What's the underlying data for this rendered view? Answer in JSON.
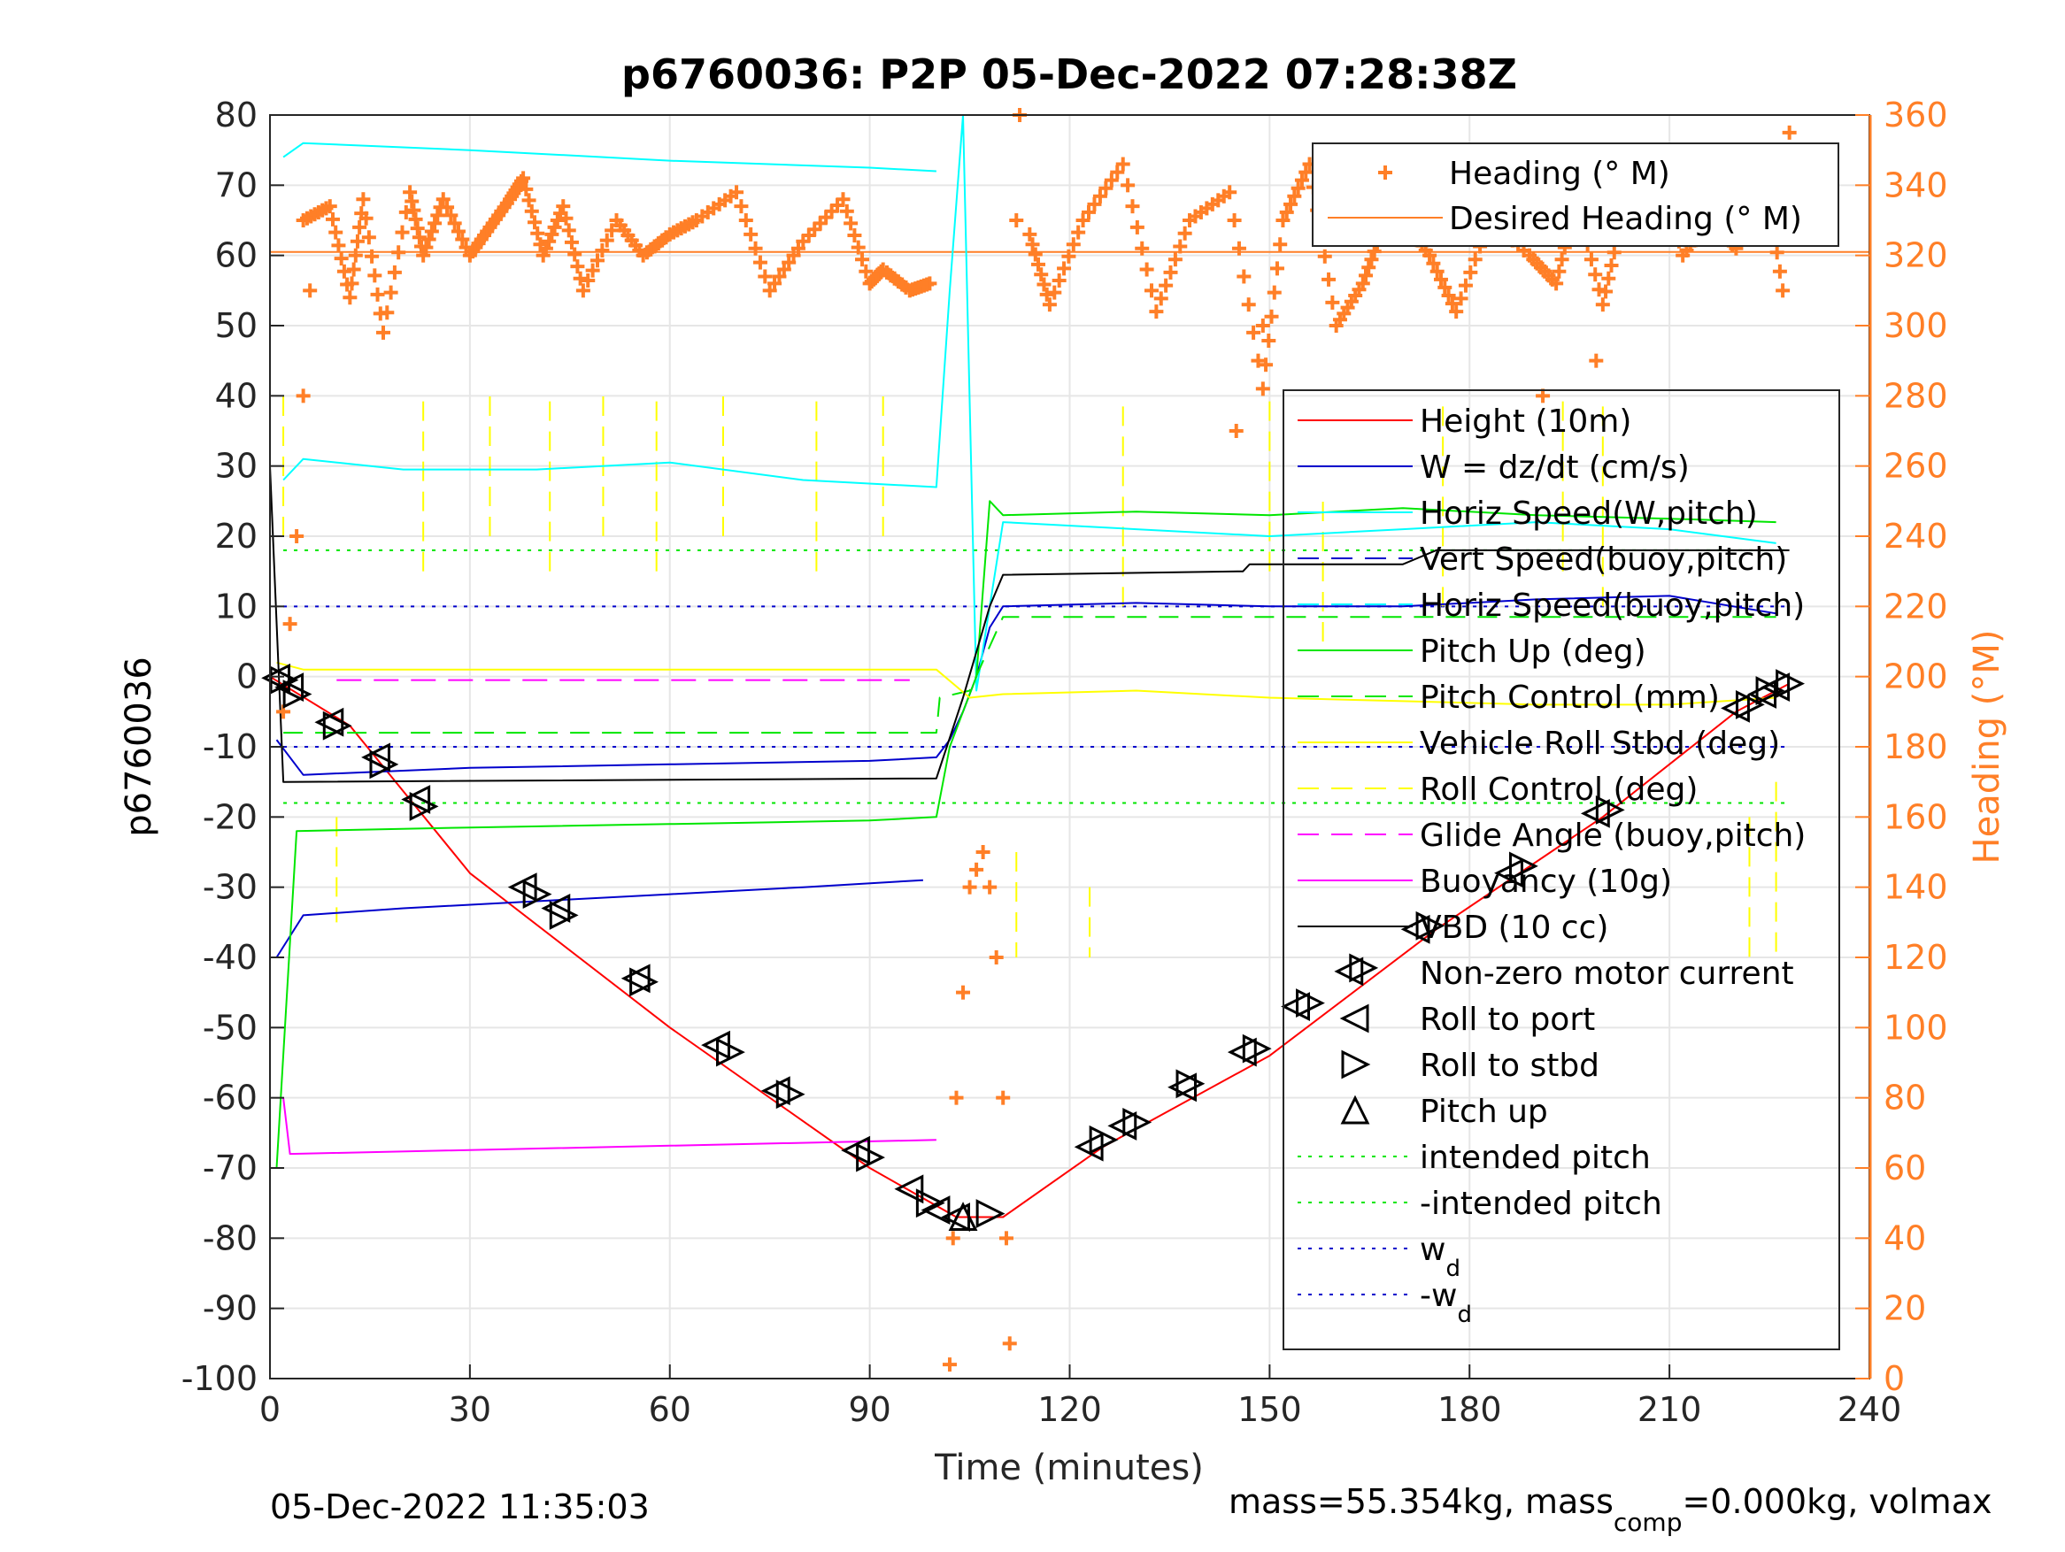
{
  "title": "p6760036: P2P 05-Dec-2022 07:28:38Z",
  "footer_left": "05-Dec-2022 11:35:03",
  "footer_right": {
    "prefix": "mass=55.354kg, mass",
    "sub": "comp",
    "suffix": "=0.000kg, volmax"
  },
  "colors": {
    "heading": "#ff7f27",
    "red": "#ff0000",
    "blue": "#0000cc",
    "green": "#00e600",
    "cyan": "#00ffff",
    "yellow": "#ffff00",
    "magenta": "#ff00ff",
    "black": "#000000",
    "grid": "#e6e6e6"
  },
  "chart_data": {
    "type": "line",
    "xlabel": "Time (minutes)",
    "ylabel": "p6760036",
    "y2label": "Heading (°M)",
    "xlim": [
      0,
      240
    ],
    "ylim": [
      -100,
      80
    ],
    "y2lim": [
      0,
      360
    ],
    "xticks": [
      0,
      30,
      60,
      90,
      120,
      150,
      180,
      210,
      240
    ],
    "yticks": [
      80,
      70,
      60,
      50,
      40,
      30,
      20,
      10,
      0,
      -10,
      -20,
      -30,
      -40,
      -50,
      -60,
      -70,
      -80,
      -90,
      -100
    ],
    "y2ticks": [
      360,
      340,
      320,
      300,
      280,
      260,
      240,
      220,
      200,
      180,
      160,
      140,
      120,
      100,
      80,
      60,
      40,
      20,
      0
    ],
    "grid": true,
    "legend_heading": [
      {
        "label": "Heading (° M)",
        "style": "plus",
        "color": "#ff7f27"
      },
      {
        "label": "Desired Heading (° M)",
        "style": "solid",
        "color": "#ff7f27"
      }
    ],
    "legend_main": [
      {
        "label": "Height (10m)",
        "style": "solid",
        "color": "#ff0000"
      },
      {
        "label": "W = dz/dt (cm/s)",
        "style": "solid",
        "color": "#0000cc"
      },
      {
        "label": "Horiz Speed(W,pitch)",
        "style": "solid",
        "color": "#00ffff"
      },
      {
        "label": "Vert Speed(buoy,pitch)",
        "style": "dashed",
        "color": "#0000cc"
      },
      {
        "label": "Horiz Speed(buoy,pitch)",
        "style": "dashed",
        "color": "#00ffff"
      },
      {
        "label": "Pitch Up (deg)",
        "style": "solid",
        "color": "#00e600"
      },
      {
        "label": "Pitch Control (mm)",
        "style": "dashed",
        "color": "#00e600"
      },
      {
        "label": "Vehicle Roll Stbd (deg)",
        "style": "solid",
        "color": "#ffff00"
      },
      {
        "label": "Roll Control (deg)",
        "style": "dashed",
        "color": "#ffff00"
      },
      {
        "label": "Glide Angle (buoy,pitch)",
        "style": "dashed",
        "color": "#ff00ff"
      },
      {
        "label": "Buoyancy (10g)",
        "style": "solid",
        "color": "#ff00ff"
      },
      {
        "label": "VBD (10 cc)",
        "style": "solid",
        "color": "#000000"
      },
      {
        "label": "Non-zero motor current",
        "style": "none",
        "color": "#000000"
      },
      {
        "label": "Roll to port",
        "style": "tri-left",
        "color": "#000000"
      },
      {
        "label": "Roll to stbd",
        "style": "tri-right",
        "color": "#000000"
      },
      {
        "label": "Pitch up",
        "style": "tri-up",
        "color": "#000000"
      },
      {
        "label": "intended pitch",
        "style": "dotted",
        "color": "#00e600"
      },
      {
        "label": "-intended pitch",
        "style": "dotted",
        "color": "#00e600"
      },
      {
        "label": "w",
        "sub": "d",
        "style": "dotted",
        "color": "#0000cc"
      },
      {
        "label": "-w",
        "sub": "d",
        "style": "dotted",
        "color": "#0000cc"
      }
    ],
    "series": [
      {
        "key": "height",
        "color": "#ff0000",
        "dash": "",
        "x": [
          0,
          12,
          30,
          60,
          90,
          103,
          110,
          125,
          150,
          175,
          200,
          220,
          228
        ],
        "y": [
          0,
          -7,
          -28,
          -50,
          -70,
          -77,
          -77,
          -67,
          -54,
          -36,
          -20,
          -5,
          -1
        ]
      },
      {
        "key": "w",
        "color": "#0000cc",
        "dash": "",
        "x": [
          1,
          5,
          30,
          60,
          90,
          100,
          102,
          104,
          106,
          108,
          110,
          130,
          150,
          170,
          190,
          210,
          226
        ],
        "y": [
          -9,
          -14,
          -13,
          -12.5,
          -12,
          -11.5,
          -9,
          -5,
          0,
          7,
          10,
          10.5,
          10,
          10,
          11,
          11.5,
          9
        ]
      },
      {
        "key": "horiz_w",
        "color": "#00ffff",
        "dash": "",
        "x": [
          2,
          5,
          20,
          40,
          60,
          80,
          100,
          102,
          104,
          106,
          108,
          110,
          130,
          150,
          170,
          190,
          210,
          226
        ],
        "y": [
          28,
          31,
          29.5,
          29.5,
          30.5,
          28,
          27,
          55,
          80,
          -2,
          10,
          22,
          21,
          20,
          21,
          22,
          21,
          19
        ]
      },
      {
        "key": "vert_buoy",
        "color": "#0000cc",
        "dash": "",
        "x": [
          1,
          5,
          20,
          40,
          60,
          80,
          98
        ],
        "y": [
          -40,
          -34,
          -33,
          -32,
          -31,
          -30,
          -29
        ]
      },
      {
        "key": "horiz_buoy",
        "color": "#00ffff",
        "dash": "",
        "x": [
          2,
          5,
          30,
          60,
          90,
          100
        ],
        "y": [
          74,
          76,
          75,
          73.5,
          72.5,
          72
        ]
      },
      {
        "key": "pitch",
        "color": "#00e600",
        "dash": "",
        "x": [
          1,
          4,
          30,
          60,
          90,
          100,
          102,
          104,
          106,
          108,
          110,
          130,
          150,
          170,
          190,
          210,
          226
        ],
        "y": [
          -70,
          -22,
          -21.5,
          -21,
          -20.5,
          -20,
          -10,
          -5,
          0,
          25,
          23,
          23.5,
          23,
          24,
          23,
          22.5,
          22
        ]
      },
      {
        "key": "pitch_ctrl",
        "color": "#00e600",
        "dash": "22,14",
        "x": [
          2,
          100,
          100.5,
          105,
          110,
          150,
          226
        ],
        "y": [
          -8,
          -8,
          -3,
          -2,
          8.5,
          8.5,
          8.5
        ]
      },
      {
        "key": "roll",
        "color": "#ffff00",
        "dash": "",
        "x": [
          1,
          5,
          30,
          60,
          90,
          100,
          105,
          110,
          130,
          150,
          170,
          190,
          210,
          226
        ],
        "y": [
          2,
          1,
          1,
          1,
          1,
          1,
          -3,
          -2.5,
          -2,
          -3,
          -3.5,
          -4,
          -4,
          -3
        ]
      },
      {
        "key": "glide",
        "color": "#ff00ff",
        "dash": "28,14",
        "x": [
          10,
          96
        ],
        "y": [
          -0.5,
          -0.5
        ]
      },
      {
        "key": "buoy",
        "color": "#ff00ff",
        "dash": "",
        "x": [
          2,
          3,
          100
        ],
        "y": [
          -60,
          -68,
          -66
        ]
      },
      {
        "key": "vbd",
        "color": "#000000",
        "dash": "",
        "x": [
          0,
          2,
          100,
          104,
          108,
          110,
          146,
          147,
          170,
          175,
          228
        ],
        "y": [
          30,
          -15,
          -14.5,
          -3,
          10,
          14.5,
          15,
          16,
          16,
          18,
          18
        ]
      }
    ],
    "ref_lines": [
      {
        "key": "intended",
        "value": 18,
        "color": "#00e600",
        "dash": "4,8",
        "from": 2,
        "to": 228
      },
      {
        "key": "-intended",
        "value": -18,
        "color": "#00e600",
        "dash": "4,8",
        "from": 2,
        "to": 228
      },
      {
        "key": "wd",
        "value": 10,
        "color": "#0000cc",
        "dash": "4,8",
        "from": 2,
        "to": 228
      },
      {
        "key": "-wd",
        "value": -10,
        "color": "#0000cc",
        "dash": "4,8",
        "from": 2,
        "to": 228
      }
    ],
    "desired_heading": 321,
    "roll_port": [
      [
        1,
        -0.2
      ],
      [
        3,
        -1.5
      ],
      [
        9,
        -6.5
      ],
      [
        16,
        -11.5
      ],
      [
        22,
        -17.5
      ],
      [
        38,
        -30
      ],
      [
        43,
        -33
      ],
      [
        55,
        -43
      ],
      [
        67,
        -52.5
      ],
      [
        76,
        -59
      ],
      [
        88,
        -67.5
      ],
      [
        96,
        -73
      ],
      [
        100,
        -76
      ],
      [
        103,
        -77
      ],
      [
        123,
        -67
      ],
      [
        128,
        -64
      ],
      [
        137,
        -58.5
      ],
      [
        146,
        -53.5
      ],
      [
        154,
        -47
      ],
      [
        162,
        -42
      ],
      [
        172,
        -36
      ],
      [
        186,
        -28
      ],
      [
        199,
        -19.5
      ],
      [
        220,
        -4.5
      ],
      [
        224,
        -2.5
      ],
      [
        226,
        -1.5
      ]
    ],
    "roll_stbd": [
      [
        2,
        -0.5
      ],
      [
        4,
        -2.5
      ],
      [
        10,
        -7
      ],
      [
        17,
        -12.5
      ],
      [
        23,
        -18.5
      ],
      [
        40,
        -31
      ],
      [
        44,
        -34
      ],
      [
        56,
        -43.5
      ],
      [
        69,
        -53.5
      ],
      [
        78,
        -59.5
      ],
      [
        90,
        -68.5
      ],
      [
        99,
        -75
      ],
      [
        108,
        -76.5
      ],
      [
        125,
        -66
      ],
      [
        130,
        -63.5
      ],
      [
        138,
        -58
      ],
      [
        148,
        -53
      ],
      [
        156,
        -46.5
      ],
      [
        164,
        -41.5
      ],
      [
        174,
        -35.5
      ],
      [
        188,
        -27
      ],
      [
        201,
        -19
      ],
      [
        222,
        -4
      ],
      [
        225,
        -2
      ],
      [
        228,
        -1
      ]
    ],
    "pitch_up_marks": [
      [
        104,
        -77
      ]
    ],
    "roll_spikes": [
      [
        2,
        20,
        40
      ],
      [
        10,
        -20,
        -35
      ],
      [
        23,
        15,
        40
      ],
      [
        33,
        20,
        40
      ],
      [
        42,
        15,
        40
      ],
      [
        50,
        20,
        40
      ],
      [
        58,
        15,
        40
      ],
      [
        68,
        20,
        40
      ],
      [
        82,
        15,
        40
      ],
      [
        92,
        20,
        40
      ],
      [
        112,
        -25,
        -40
      ],
      [
        123,
        -30,
        -40
      ],
      [
        128,
        10,
        40
      ],
      [
        150,
        15,
        40
      ],
      [
        158,
        5,
        25
      ],
      [
        176,
        10,
        40
      ],
      [
        194,
        15,
        40
      ],
      [
        200,
        10,
        40
      ],
      [
        222,
        -20,
        -40
      ],
      [
        226,
        -15,
        -40
      ]
    ],
    "heading_segments": [
      {
        "x": [
          5,
          9,
          12,
          14,
          17,
          21,
          23,
          26,
          30,
          33,
          36,
          38,
          41,
          44,
          47,
          52,
          56,
          60,
          64,
          70,
          75,
          80,
          86,
          90,
          92,
          96,
          99
        ],
        "y": [
          330,
          334,
          308,
          336,
          298,
          338,
          320,
          336,
          320,
          328,
          336,
          342,
          320,
          334,
          310,
          330,
          320,
          326,
          330,
          338,
          310,
          324,
          336,
          312,
          316,
          310,
          312
        ]
      },
      {
        "x": [
          114,
          117,
          122,
          128,
          133,
          138,
          144,
          149,
          152,
          156,
          160,
          164,
          167,
          170,
          174,
          178,
          183,
          189,
          193,
          196,
          200,
          203,
          208,
          212,
          216,
          220,
          224,
          227
        ],
        "y": [
          326,
          306,
          330,
          346,
          304,
          330,
          338,
          282,
          330,
          346,
          300,
          312,
          328,
          330,
          320,
          304,
          330,
          320,
          312,
          336,
          306,
          332,
          348,
          320,
          330,
          322,
          348,
          310
        ]
      }
    ],
    "heading_scatter": [
      [
        2,
        190
      ],
      [
        3,
        215
      ],
      [
        4,
        240
      ],
      [
        5,
        280
      ],
      [
        6,
        310
      ],
      [
        102,
        4
      ],
      [
        102.5,
        40
      ],
      [
        103,
        80
      ],
      [
        104,
        110
      ],
      [
        105,
        140
      ],
      [
        106,
        145
      ],
      [
        107,
        150
      ],
      [
        108,
        140
      ],
      [
        109,
        120
      ],
      [
        110,
        80
      ],
      [
        110.5,
        40
      ],
      [
        111,
        10
      ],
      [
        112,
        330
      ],
      [
        112.5,
        360
      ],
      [
        145,
        270
      ],
      [
        149,
        300
      ],
      [
        191,
        280
      ],
      [
        199,
        290
      ],
      [
        228,
        355
      ]
    ]
  }
}
